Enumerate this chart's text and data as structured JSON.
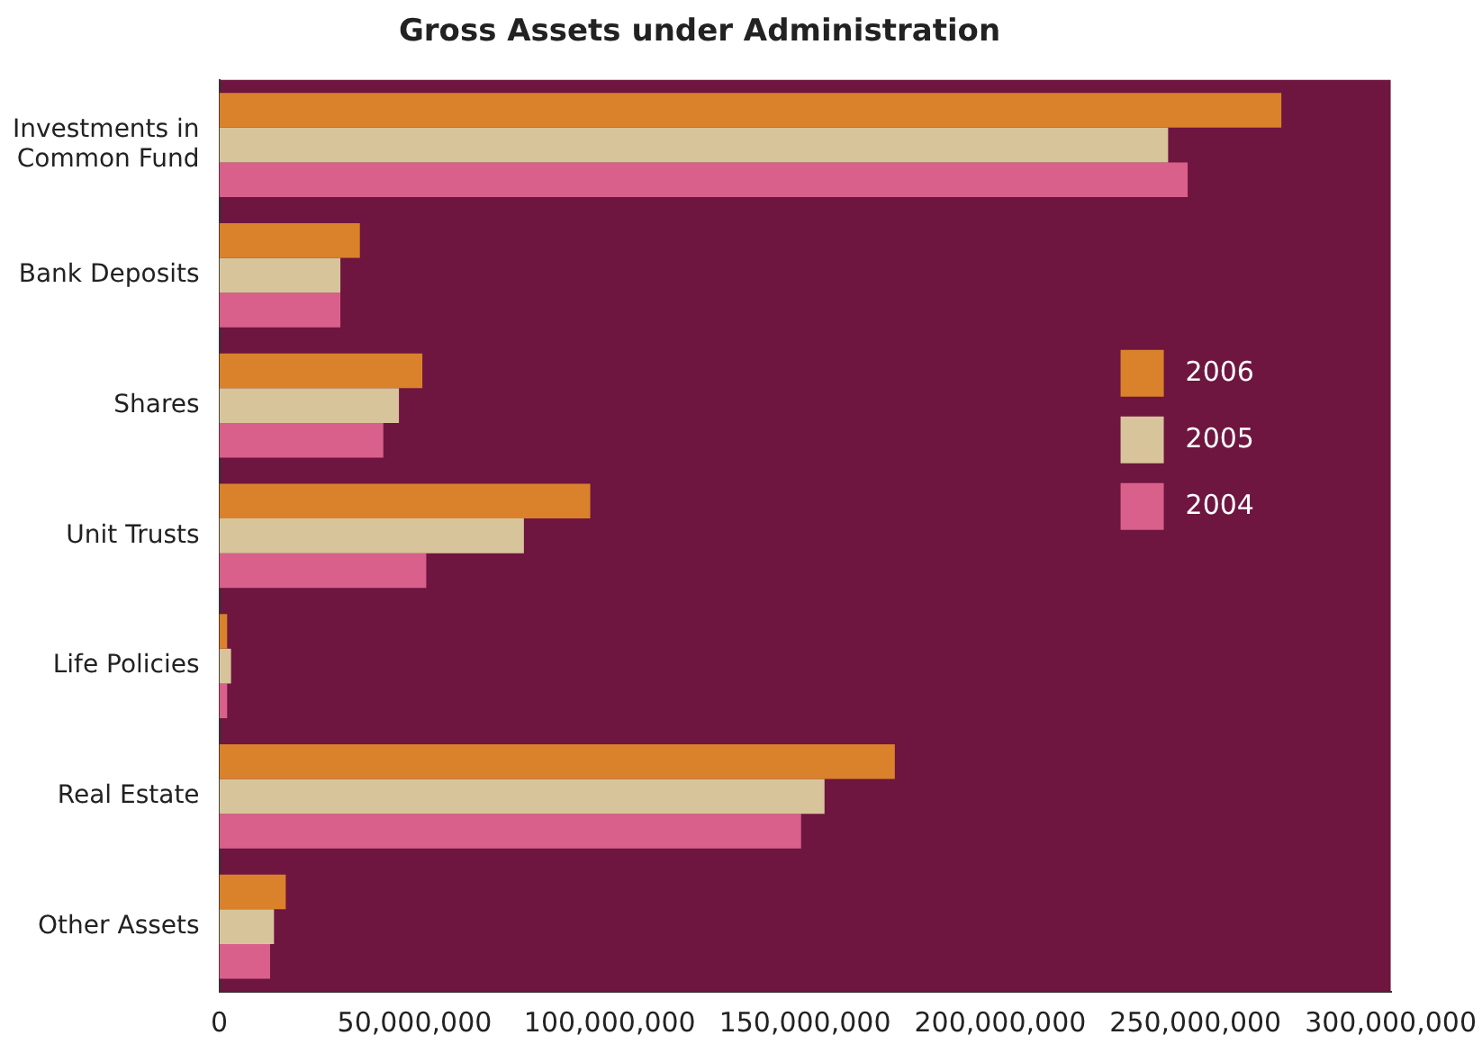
{
  "chart_data": {
    "type": "bar",
    "orientation": "horizontal",
    "title": "Gross Assets under Administration",
    "categories": [
      "Investments in Common Fund",
      "Bank Deposits",
      "Shares",
      "Unit Trusts",
      "Life Policies",
      "Real Estate",
      "Other Assets"
    ],
    "series": [
      {
        "name": "2006",
        "color": "#d9822b",
        "values": [
          272000000,
          36000000,
          52000000,
          95000000,
          2000000,
          173000000,
          17000000
        ]
      },
      {
        "name": "2005",
        "color": "#d8c49a",
        "values": [
          243000000,
          31000000,
          46000000,
          78000000,
          3000000,
          155000000,
          14000000
        ]
      },
      {
        "name": "2004",
        "color": "#d9608a",
        "values": [
          248000000,
          31000000,
          42000000,
          53000000,
          2000000,
          149000000,
          13000000
        ]
      }
    ],
    "xlim": [
      0,
      300000000
    ],
    "xticks": [
      {
        "value": 0,
        "label": "0"
      },
      {
        "value": 50000000,
        "label": "50,000,000"
      },
      {
        "value": 100000000,
        "label": "100,000,000"
      },
      {
        "value": 150000000,
        "label": "150,000,000"
      },
      {
        "value": 200000000,
        "label": "200,000,000"
      },
      {
        "value": 250000000,
        "label": "250,000,000"
      },
      {
        "value": 300000000,
        "label": "300,000,000"
      }
    ],
    "grid": false,
    "legend": "right"
  }
}
